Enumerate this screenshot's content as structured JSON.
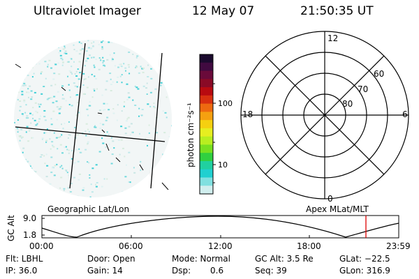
{
  "header": {
    "instrument": "Ultraviolet Imager",
    "date": "12 May 07",
    "time": "21:50:35 UT"
  },
  "colorbar": {
    "unit_label": "photon cm⁻²s⁻¹",
    "ticks": [
      "100",
      "10"
    ],
    "colors": [
      "#1b0a2e",
      "#400a40",
      "#6a0a3a",
      "#8a0a26",
      "#b80a10",
      "#d83010",
      "#ee6a10",
      "#f5a010",
      "#f5d010",
      "#e6ee20",
      "#b8ee20",
      "#78e020",
      "#30d040",
      "#20d0a0",
      "#20d0d0",
      "#80e0e0",
      "#d0eeee"
    ]
  },
  "polar": {
    "hour_labels": {
      "top": "12",
      "bottom": "0",
      "left": "18",
      "right": "6"
    },
    "lat_labels": [
      "60",
      "70",
      "80"
    ]
  },
  "timeline": {
    "left_label": "Geographic Lat/Lon",
    "right_label": "Apex MLat/MLT",
    "y_axis_label": "GC Alt",
    "y_ticks": [
      "9.0",
      "1.8"
    ],
    "x_ticks": [
      "00:00",
      "06:00",
      "12:00",
      "18:00",
      "23:59"
    ],
    "current_marker_color": "#dd0000"
  },
  "status": {
    "filter": "Flt: LBHL",
    "door": "Door: Open",
    "mode": "Mode: Normal",
    "gc_alt": "GC Alt: 3.5 Re",
    "glat": "GLat: −22.5",
    "ip": "IP: 36.0",
    "gain": "Gain: 14",
    "dsp_label": "Dsp:",
    "dsp_value": "0.6",
    "seq": "Seq: 39",
    "glon": "GLon: 316.9"
  }
}
